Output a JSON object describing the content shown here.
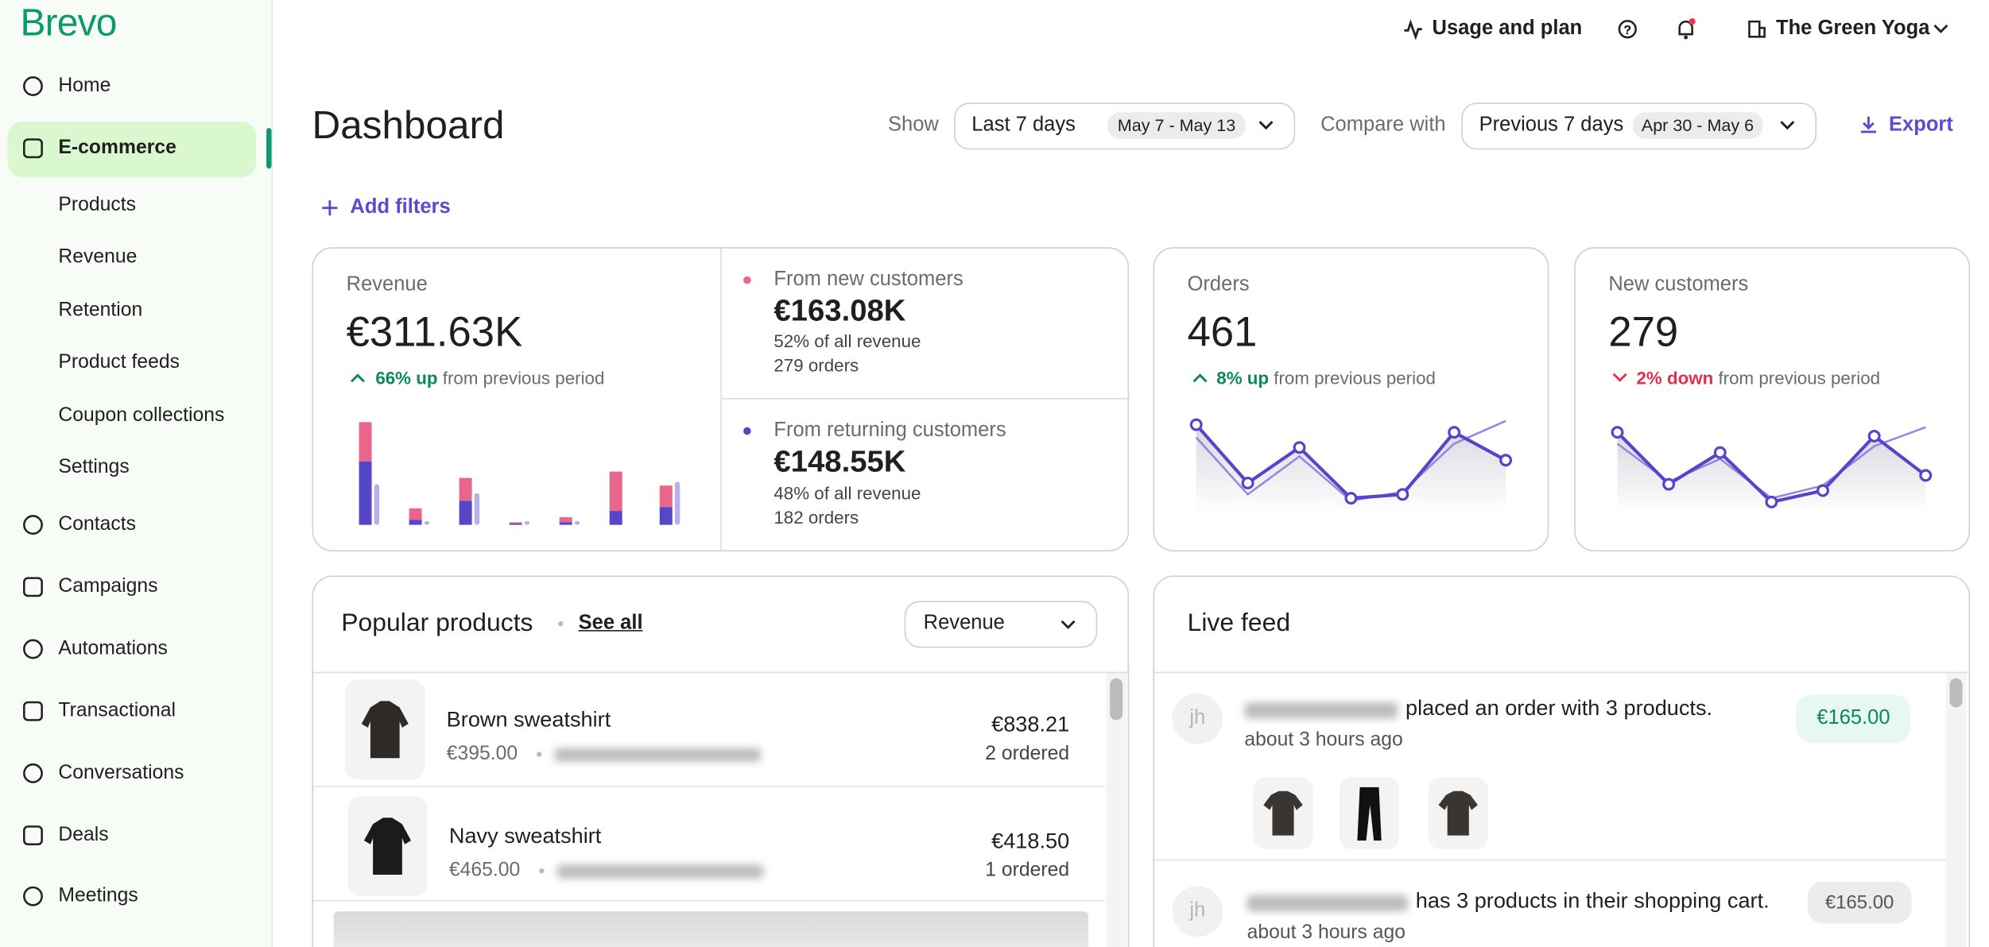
{
  "sidebar": {
    "brand": "Brevo",
    "nav": [
      "Home",
      "E-commerce",
      "Contacts",
      "Campaigns",
      "Automations",
      "Transactional",
      "Conversations",
      "Deals",
      "Meetings"
    ],
    "subnav": [
      "Products",
      "Revenue",
      "Retention",
      "Product feeds",
      "Coupon collections",
      "Settings"
    ]
  },
  "topbar": {
    "usage": "Usage and plan",
    "account": "The Green Yoga"
  },
  "header": {
    "title": "Dashboard",
    "show": "Show",
    "period": "Last 7 days",
    "period_range": "May 7 - May 13",
    "compare": "Compare with",
    "compare_period": "Previous 7 days",
    "compare_range": "Apr 30 - May 6",
    "export": "Export",
    "add_filters": "Add filters"
  },
  "revenue": {
    "label": "Revenue",
    "value": "€311.63K",
    "change": "66% up",
    "change_suffix": "from previous period",
    "new": {
      "label": "From new customers",
      "value": "€163.08K",
      "share": "52% of all revenue",
      "orders": "279 orders"
    },
    "returning": {
      "label": "From returning customers",
      "value": "€148.55K",
      "share": "48% of all revenue",
      "orders": "182 orders"
    },
    "chart": {
      "type": "bar",
      "series": [
        {
          "color": "#5546c9",
          "values": [
            50,
            4,
            19,
            1,
            2,
            11,
            14
          ]
        },
        {
          "color": "#e9668a",
          "values": [
            31,
            9,
            18,
            1,
            4,
            31,
            17
          ]
        },
        {
          "color": "#b7b0ec",
          "values": [
            32,
            3,
            25,
            3,
            3,
            0,
            34
          ]
        }
      ]
    }
  },
  "orders": {
    "label": "Orders",
    "value": "461",
    "change": "8% up",
    "change_suffix": "from previous period",
    "chart": {
      "type": "line",
      "series": [
        {
          "color": "#5546c9",
          "values": [
            70,
            24,
            52,
            12,
            15,
            64,
            42
          ]
        },
        {
          "color": "#9189e0",
          "values": [
            60,
            15,
            45,
            10,
            17,
            55,
            73
          ]
        }
      ]
    }
  },
  "new_customers": {
    "label": "New customers",
    "value": "279",
    "change": "2% down",
    "change_suffix": "from previous period",
    "chart": {
      "type": "line",
      "series": [
        {
          "color": "#5546c9",
          "values": [
            64,
            23,
            48,
            9,
            18,
            61,
            30
          ]
        },
        {
          "color": "#9189e0",
          "values": [
            55,
            25,
            43,
            12,
            22,
            53,
            68
          ]
        }
      ]
    }
  },
  "popular_products": {
    "title": "Popular products",
    "see_all": "See all",
    "sort": "Revenue",
    "rows": [
      {
        "name": "Brown sweatshirt",
        "price": "€395.00",
        "revenue": "€838.21",
        "ordered": "2 ordered"
      },
      {
        "name": "Navy sweatshirt",
        "price": "€465.00",
        "revenue": "€418.50",
        "ordered": "1 ordered"
      }
    ]
  },
  "live_feed": {
    "title": "Live feed",
    "items": [
      {
        "avatar": "jh",
        "text": "placed an order with 3 products.",
        "time": "about 3 hours ago",
        "amount": "€165.00"
      },
      {
        "avatar": "jh",
        "text": "has 3 products in their shopping cart.",
        "time": "about 3 hours ago",
        "amount": "€165.00"
      }
    ]
  }
}
